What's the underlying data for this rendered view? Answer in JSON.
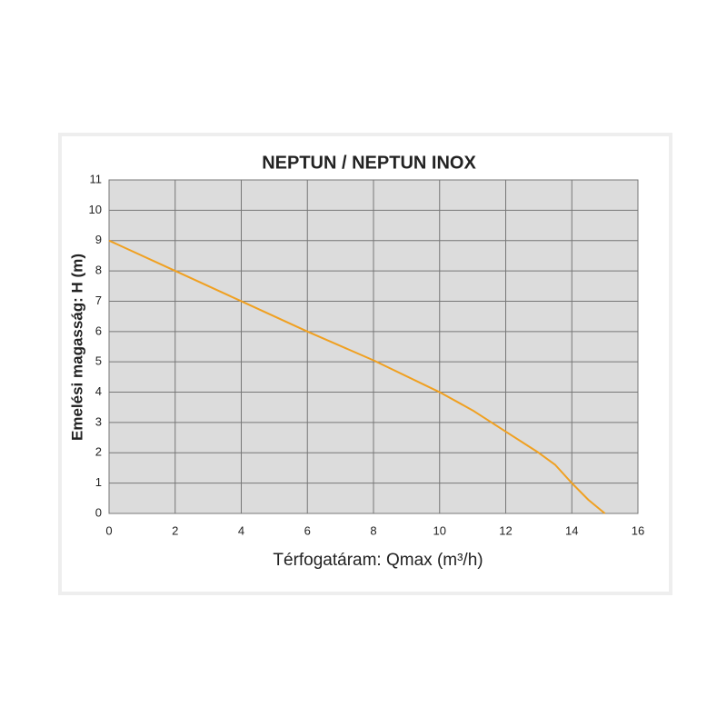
{
  "chart_data": {
    "type": "line",
    "title": "NEPTUN / NEPTUN INOX",
    "xlabel": "Térfogatáram: Qmax (m³/h)",
    "ylabel": "Emelési magasság: H (m)",
    "x": [
      0,
      2,
      4,
      6,
      8,
      10,
      11,
      12,
      13,
      13.5,
      14,
      14.5,
      15
    ],
    "series": [
      {
        "name": "NEPTUN / NEPTUN INOX",
        "color": "#f0a020",
        "values": [
          9,
          8,
          7,
          6,
          5.05,
          4,
          3.4,
          2.7,
          2,
          1.6,
          1,
          0.45,
          0
        ]
      }
    ],
    "xlim": [
      0,
      16
    ],
    "xticks": [
      0,
      2,
      4,
      6,
      8,
      10,
      12,
      14,
      16
    ],
    "ylim": [
      0,
      11
    ],
    "yticks": [
      0,
      1,
      2,
      3,
      4,
      5,
      6,
      7,
      8,
      9,
      10,
      11
    ],
    "grid": true
  }
}
